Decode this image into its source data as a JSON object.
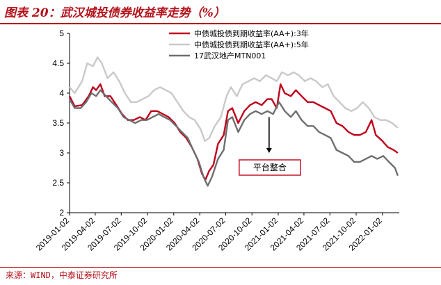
{
  "header": {
    "title": "图表 20：武汉城投债券收益率走势（%）"
  },
  "footer": {
    "source": "来源：WIND，中泰证券研究所"
  },
  "colors": {
    "accent": "#b5121b",
    "series_3y": "#c0001b",
    "series_5y": "#c9c9c9",
    "series_mtn": "#6e6e6e"
  },
  "chart_data": {
    "type": "line",
    "title": "",
    "xlabel": "",
    "ylabel": "",
    "ylim": [
      2,
      5
    ],
    "yticks": [
      "2",
      "2.5",
      "3",
      "3.5",
      "4",
      "4.5",
      "5"
    ],
    "xticks": [
      "2019-01-02",
      "2019-04-02",
      "2019-07-02",
      "2019-10-02",
      "2020-01-02",
      "2020-04-02",
      "2020-07-02",
      "2020-10-02",
      "2021-01-02",
      "2021-04-02",
      "2021-07-02",
      "2021-10-02",
      "2022-01-02"
    ],
    "legend_position": "top-right",
    "grid": false,
    "series": [
      {
        "name": "中债城投债到期收益率(AA+):3年",
        "color": "#c0001b",
        "points": [
          [
            "2019-01-02",
            3.95
          ],
          [
            "2019-01-20",
            3.78
          ],
          [
            "2019-02-15",
            3.8
          ],
          [
            "2019-03-10",
            3.95
          ],
          [
            "2019-03-25",
            4.1
          ],
          [
            "2019-04-05",
            4.05
          ],
          [
            "2019-04-20",
            4.15
          ],
          [
            "2019-05-05",
            3.95
          ],
          [
            "2019-05-25",
            3.95
          ],
          [
            "2019-06-15",
            3.8
          ],
          [
            "2019-07-05",
            3.65
          ],
          [
            "2019-07-25",
            3.55
          ],
          [
            "2019-08-15",
            3.55
          ],
          [
            "2019-09-05",
            3.6
          ],
          [
            "2019-09-25",
            3.55
          ],
          [
            "2019-10-15",
            3.7
          ],
          [
            "2019-11-05",
            3.7
          ],
          [
            "2019-11-25",
            3.65
          ],
          [
            "2019-12-15",
            3.6
          ],
          [
            "2020-01-05",
            3.5
          ],
          [
            "2020-01-25",
            3.35
          ],
          [
            "2020-02-15",
            3.25
          ],
          [
            "2020-03-05",
            3.1
          ],
          [
            "2020-03-25",
            2.9
          ],
          [
            "2020-04-10",
            2.65
          ],
          [
            "2020-04-22",
            2.55
          ],
          [
            "2020-05-05",
            2.7
          ],
          [
            "2020-05-20",
            2.8
          ],
          [
            "2020-06-05",
            3.15
          ],
          [
            "2020-06-25",
            3.3
          ],
          [
            "2020-07-10",
            3.7
          ],
          [
            "2020-07-25",
            3.75
          ],
          [
            "2020-08-15",
            3.5
          ],
          [
            "2020-09-05",
            3.7
          ],
          [
            "2020-09-25",
            3.8
          ],
          [
            "2020-10-15",
            3.85
          ],
          [
            "2020-11-05",
            3.8
          ],
          [
            "2020-11-25",
            3.9
          ],
          [
            "2020-12-10",
            3.9
          ],
          [
            "2020-12-28",
            3.75
          ],
          [
            "2021-01-10",
            4.15
          ],
          [
            "2021-01-25",
            4.0
          ],
          [
            "2021-02-15",
            3.95
          ],
          [
            "2021-03-05",
            4.05
          ],
          [
            "2021-03-25",
            3.95
          ],
          [
            "2021-04-15",
            3.85
          ],
          [
            "2021-05-05",
            3.85
          ],
          [
            "2021-05-25",
            3.8
          ],
          [
            "2021-06-15",
            3.75
          ],
          [
            "2021-07-05",
            3.7
          ],
          [
            "2021-07-25",
            3.5
          ],
          [
            "2021-08-15",
            3.45
          ],
          [
            "2021-09-05",
            3.35
          ],
          [
            "2021-09-25",
            3.3
          ],
          [
            "2021-10-15",
            3.3
          ],
          [
            "2021-11-05",
            3.35
          ],
          [
            "2021-11-25",
            3.55
          ],
          [
            "2021-12-10",
            3.3
          ],
          [
            "2022-01-02",
            3.2
          ],
          [
            "2022-01-20",
            3.1
          ],
          [
            "2022-02-10",
            3.05
          ],
          [
            "2022-02-25",
            3.0
          ]
        ]
      },
      {
        "name": "中债城投债到期收益率(AA+):5年",
        "color": "#c9c9c9",
        "points": [
          [
            "2019-01-02",
            4.1
          ],
          [
            "2019-01-20",
            4.0
          ],
          [
            "2019-02-15",
            4.2
          ],
          [
            "2019-03-05",
            4.5
          ],
          [
            "2019-03-25",
            4.45
          ],
          [
            "2019-04-10",
            4.6
          ],
          [
            "2019-04-25",
            4.5
          ],
          [
            "2019-05-15",
            4.25
          ],
          [
            "2019-06-05",
            4.35
          ],
          [
            "2019-06-25",
            4.2
          ],
          [
            "2019-07-15",
            4.0
          ],
          [
            "2019-08-05",
            3.85
          ],
          [
            "2019-08-25",
            3.85
          ],
          [
            "2019-09-15",
            3.9
          ],
          [
            "2019-10-05",
            3.95
          ],
          [
            "2019-10-25",
            4.05
          ],
          [
            "2019-11-15",
            4.1
          ],
          [
            "2019-12-05",
            4.05
          ],
          [
            "2019-12-25",
            4.0
          ],
          [
            "2020-01-15",
            3.85
          ],
          [
            "2020-02-05",
            3.7
          ],
          [
            "2020-02-25",
            3.6
          ],
          [
            "2020-03-15",
            3.55
          ],
          [
            "2020-04-05",
            3.4
          ],
          [
            "2020-04-20",
            3.2
          ],
          [
            "2020-05-05",
            3.25
          ],
          [
            "2020-05-25",
            3.45
          ],
          [
            "2020-06-15",
            3.6
          ],
          [
            "2020-07-05",
            3.95
          ],
          [
            "2020-07-20",
            4.1
          ],
          [
            "2020-08-10",
            3.95
          ],
          [
            "2020-08-30",
            4.15
          ],
          [
            "2020-09-20",
            4.2
          ],
          [
            "2020-10-10",
            4.25
          ],
          [
            "2020-10-30",
            4.2
          ],
          [
            "2020-11-20",
            4.3
          ],
          [
            "2020-12-10",
            4.25
          ],
          [
            "2020-12-28",
            4.2
          ],
          [
            "2021-01-15",
            4.35
          ],
          [
            "2021-02-05",
            4.3
          ],
          [
            "2021-02-25",
            4.35
          ],
          [
            "2021-03-15",
            4.3
          ],
          [
            "2021-04-05",
            4.2
          ],
          [
            "2021-04-25",
            4.25
          ],
          [
            "2021-05-15",
            4.2
          ],
          [
            "2021-06-05",
            4.1
          ],
          [
            "2021-06-25",
            4.15
          ],
          [
            "2021-07-15",
            3.95
          ],
          [
            "2021-08-05",
            3.85
          ],
          [
            "2021-08-25",
            3.75
          ],
          [
            "2021-09-15",
            3.7
          ],
          [
            "2021-10-05",
            3.75
          ],
          [
            "2021-10-25",
            3.85
          ],
          [
            "2021-11-15",
            3.75
          ],
          [
            "2021-12-05",
            3.6
          ],
          [
            "2021-12-25",
            3.55
          ],
          [
            "2022-01-15",
            3.55
          ],
          [
            "2022-02-05",
            3.5
          ],
          [
            "2022-02-25",
            3.42
          ]
        ]
      },
      {
        "name": "17武汉地产MTN001",
        "color": "#6e6e6e",
        "points": [
          [
            "2019-01-02",
            3.9
          ],
          [
            "2019-01-20",
            3.75
          ],
          [
            "2019-02-10",
            3.75
          ],
          [
            "2019-03-01",
            3.85
          ],
          [
            "2019-03-20",
            4.0
          ],
          [
            "2019-04-05",
            3.95
          ],
          [
            "2019-04-20",
            4.05
          ],
          [
            "2019-05-10",
            3.95
          ],
          [
            "2019-05-30",
            3.85
          ],
          [
            "2019-06-20",
            3.75
          ],
          [
            "2019-07-10",
            3.6
          ],
          [
            "2019-07-30",
            3.55
          ],
          [
            "2019-08-20",
            3.5
          ],
          [
            "2019-09-10",
            3.55
          ],
          [
            "2019-09-30",
            3.55
          ],
          [
            "2019-10-20",
            3.6
          ],
          [
            "2019-11-10",
            3.65
          ],
          [
            "2019-11-30",
            3.6
          ],
          [
            "2019-12-20",
            3.55
          ],
          [
            "2020-01-10",
            3.45
          ],
          [
            "2020-01-30",
            3.35
          ],
          [
            "2020-02-20",
            3.25
          ],
          [
            "2020-03-10",
            3.05
          ],
          [
            "2020-03-30",
            2.85
          ],
          [
            "2020-04-15",
            2.6
          ],
          [
            "2020-04-30",
            2.45
          ],
          [
            "2020-05-15",
            2.6
          ],
          [
            "2020-06-05",
            2.9
          ],
          [
            "2020-06-25",
            3.05
          ],
          [
            "2020-07-10",
            3.55
          ],
          [
            "2020-07-25",
            3.6
          ],
          [
            "2020-08-15",
            3.35
          ],
          [
            "2020-09-05",
            3.55
          ],
          [
            "2020-09-25",
            3.65
          ],
          [
            "2020-10-15",
            3.7
          ],
          [
            "2020-11-05",
            3.65
          ],
          [
            "2020-11-25",
            3.7
          ],
          [
            "2020-12-15",
            3.65
          ],
          [
            "2021-01-05",
            3.85
          ],
          [
            "2021-01-25",
            3.7
          ],
          [
            "2021-02-15",
            3.6
          ],
          [
            "2021-03-05",
            3.7
          ],
          [
            "2021-03-25",
            3.55
          ],
          [
            "2021-04-15",
            3.45
          ],
          [
            "2021-05-05",
            3.45
          ],
          [
            "2021-05-25",
            3.35
          ],
          [
            "2021-06-15",
            3.3
          ],
          [
            "2021-07-05",
            3.25
          ],
          [
            "2021-07-25",
            3.05
          ],
          [
            "2021-08-15",
            3.0
          ],
          [
            "2021-09-05",
            2.95
          ],
          [
            "2021-09-25",
            2.85
          ],
          [
            "2021-10-15",
            2.85
          ],
          [
            "2021-11-05",
            2.9
          ],
          [
            "2021-11-25",
            2.95
          ],
          [
            "2021-12-15",
            2.9
          ],
          [
            "2022-01-05",
            2.95
          ],
          [
            "2022-01-25",
            2.85
          ],
          [
            "2022-02-15",
            2.75
          ],
          [
            "2022-02-25",
            2.62
          ]
        ]
      }
    ],
    "annotations": [
      {
        "text": "平台整合",
        "arrow_from": [
          "2020-12-01",
          3.6
        ],
        "arrow_to": [
          "2020-12-01",
          3.0
        ]
      }
    ]
  }
}
